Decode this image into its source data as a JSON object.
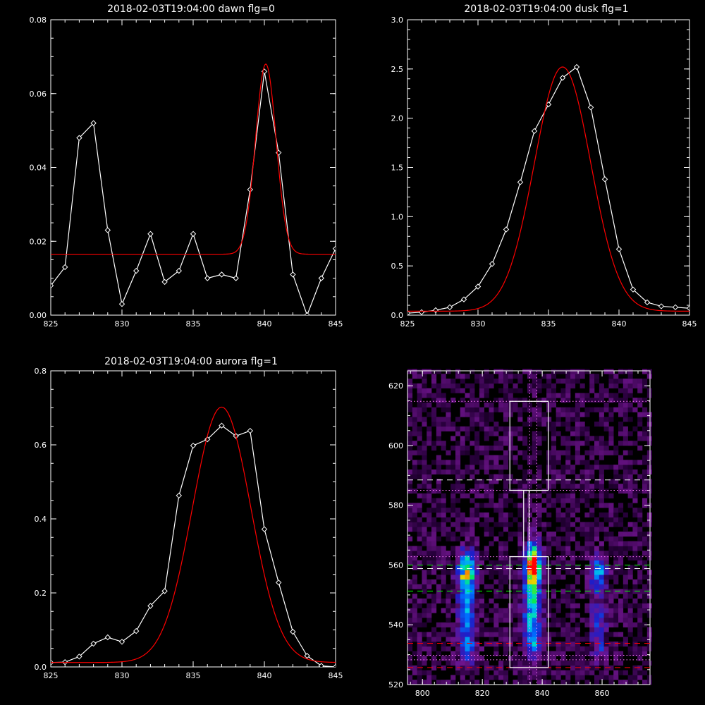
{
  "chart_data": [
    {
      "type": "line",
      "title": "2018-02-03T19:04:00 dawn flg=0",
      "xlim": [
        825,
        845
      ],
      "ylim": [
        0.0,
        0.08
      ],
      "xticks": [
        "825",
        "830",
        "835",
        "840",
        "845"
      ],
      "yticks": [
        "0.00",
        "0.02",
        "0.04",
        "0.06",
        "0.08"
      ],
      "series": [
        {
          "role": "data",
          "color": "#ffffff",
          "markers": true,
          "x": [
            825,
            826,
            827,
            828,
            829,
            830,
            831,
            832,
            833,
            834,
            835,
            836,
            837,
            838,
            839,
            840,
            841,
            842,
            843,
            844,
            845
          ],
          "y": [
            0.008,
            0.013,
            0.048,
            0.052,
            0.023,
            0.003,
            0.012,
            0.022,
            0.009,
            0.012,
            0.022,
            0.01,
            0.011,
            0.01,
            0.034,
            0.066,
            0.044,
            0.011,
            0.0,
            0.01,
            0.018
          ]
        },
        {
          "role": "fit",
          "color": "#ff0000",
          "model": "gaussian",
          "baseline": 0.0165,
          "amplitude": 0.0515,
          "center": 840.1,
          "sigma": 0.72
        }
      ]
    },
    {
      "type": "line",
      "title": "2018-02-03T19:04:00 dusk flg=1",
      "xlim": [
        825,
        845
      ],
      "ylim": [
        0.0,
        3.0
      ],
      "xticks": [
        "825",
        "830",
        "835",
        "840",
        "845"
      ],
      "yticks": [
        "0.0",
        "0.5",
        "1.0",
        "1.5",
        "2.0",
        "2.5",
        "3.0"
      ],
      "series": [
        {
          "role": "data",
          "color": "#ffffff",
          "markers": true,
          "x": [
            825,
            826,
            827,
            828,
            829,
            830,
            831,
            832,
            833,
            834,
            835,
            836,
            837,
            838,
            839,
            840,
            841,
            842,
            843,
            844,
            845
          ],
          "y": [
            0.02,
            0.03,
            0.05,
            0.08,
            0.16,
            0.29,
            0.52,
            0.87,
            1.35,
            1.87,
            2.14,
            2.41,
            2.52,
            2.11,
            1.38,
            0.67,
            0.26,
            0.13,
            0.09,
            0.08,
            0.07
          ]
        },
        {
          "role": "fit",
          "color": "#ff0000",
          "model": "gaussian",
          "baseline": 0.04,
          "amplitude": 2.48,
          "center": 836.0,
          "sigma": 2.0
        }
      ]
    },
    {
      "type": "line",
      "title": "2018-02-03T19:04:00 aurora flg=1",
      "xlim": [
        825,
        845
      ],
      "ylim": [
        0.0,
        0.8
      ],
      "xticks": [
        "825",
        "830",
        "835",
        "840",
        "845"
      ],
      "yticks": [
        "0.0",
        "0.2",
        "0.4",
        "0.6",
        "0.8"
      ],
      "series": [
        {
          "role": "data",
          "color": "#ffffff",
          "markers": true,
          "x": [
            825,
            826,
            827,
            828,
            829,
            830,
            831,
            832,
            833,
            834,
            835,
            836,
            837,
            838,
            839,
            840,
            841,
            842,
            843,
            844,
            845
          ],
          "y": [
            0.012,
            0.013,
            0.028,
            0.063,
            0.08,
            0.068,
            0.097,
            0.165,
            0.205,
            0.463,
            0.598,
            0.615,
            0.652,
            0.624,
            0.638,
            0.372,
            0.228,
            0.095,
            0.03,
            0.003,
            0.0
          ]
        },
        {
          "role": "fit",
          "color": "#ff0000",
          "model": "gaussian",
          "baseline": 0.012,
          "amplitude": 0.69,
          "center": 837.0,
          "sigma": 2.05
        }
      ]
    },
    {
      "type": "heatmap",
      "title": "",
      "xlim": [
        795,
        876
      ],
      "ylim": [
        520,
        625
      ],
      "xticks": [
        "800",
        "820",
        "840",
        "860"
      ],
      "yticks": [
        "520",
        "540",
        "560",
        "580",
        "600",
        "620"
      ],
      "blobs": [
        {
          "x": 814,
          "y": 557,
          "sx": 2.0,
          "sy": 4.5,
          "amp": 0.75
        },
        {
          "x": 814,
          "y": 543,
          "sx": 2.0,
          "sy": 7,
          "amp": 0.45
        },
        {
          "x": 814,
          "y": 531,
          "sx": 2.0,
          "sy": 4,
          "amp": 0.25
        },
        {
          "x": 836,
          "y": 559,
          "sx": 1.8,
          "sy": 5,
          "amp": 1.0
        },
        {
          "x": 836,
          "y": 545,
          "sx": 2.0,
          "sy": 7,
          "amp": 0.55
        },
        {
          "x": 836,
          "y": 532,
          "sx": 2.0,
          "sy": 4,
          "amp": 0.35
        },
        {
          "x": 858,
          "y": 557,
          "sx": 1.8,
          "sy": 4,
          "amp": 0.5
        },
        {
          "x": 858,
          "y": 541,
          "sx": 1.8,
          "sy": 5,
          "amp": 0.3
        },
        {
          "x": 858,
          "y": 530,
          "sx": 1.8,
          "sy": 3,
          "amp": 0.2
        }
      ],
      "boxes": [
        {
          "x0": 829.2,
          "x1": 842.0,
          "y0": 585.0,
          "y1": 614.8,
          "color": "#ffffff"
        },
        {
          "x0": 829.2,
          "x1": 842.0,
          "y0": 525.7,
          "y1": 562.8,
          "color": "#ffffff"
        }
      ],
      "connector": {
        "x0": 833.8,
        "x1": 835.6,
        "y0": 562.8,
        "y1": 585.0,
        "color": "#ffffff"
      },
      "vlines": [
        {
          "x": 835.8,
          "color": "#ff77ff",
          "style": "dotted"
        },
        {
          "x": 838.2,
          "color": "#ff77ff",
          "style": "dotted"
        }
      ],
      "hlines": [
        {
          "y": 614.8,
          "color": "#ff77ff",
          "style": "dotted"
        },
        {
          "y": 588.5,
          "color": "#ffffff",
          "style": "dashed"
        },
        {
          "y": 585.0,
          "color": "#ff77ff",
          "style": "dotted"
        },
        {
          "y": 562.8,
          "color": "#ff77ff",
          "style": "dotted"
        },
        {
          "y": 560.0,
          "color": "#00ff00",
          "style": "dashed"
        },
        {
          "y": 558.8,
          "color": "#ffffff",
          "style": "dashed"
        },
        {
          "y": 551.3,
          "color": "#00ff00",
          "style": "dashed"
        },
        {
          "y": 533.8,
          "color": "#ff0000",
          "style": "dashed"
        },
        {
          "y": 529.8,
          "color": "#ff77ff",
          "style": "dotted"
        },
        {
          "y": 528.3,
          "color": "#ff77ff",
          "style": "dotted"
        },
        {
          "y": 525.7,
          "color": "#ff0000",
          "style": "dashed"
        }
      ]
    }
  ]
}
